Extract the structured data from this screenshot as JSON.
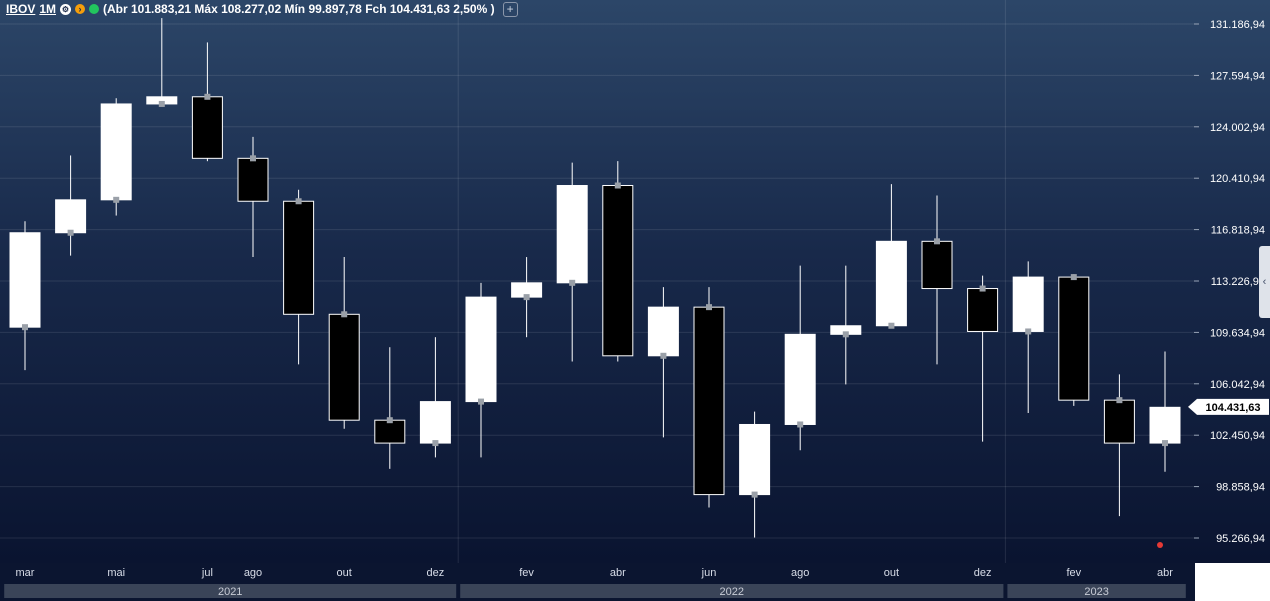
{
  "legend": {
    "symbol": "IBOV",
    "interval": "1M",
    "settings_glyph": "⚙",
    "arrow_glyph": "›",
    "ohlc_text": "(Abr 101.883,21 Máx 108.277,02 Mín 99.897,78 Fch 104.431,63 2,50% )",
    "add_glyph": "+"
  },
  "colors": {
    "background_top": "#2c4668",
    "background_bottom": "#0a1430",
    "up_candle": "#ffffff",
    "down_candle": "#000000",
    "wick": "#ffffff",
    "status_green": "#22c55e",
    "status_orange": "#f59e0b",
    "marker_red": "#e53935"
  },
  "icons": {
    "settings": "gear-icon",
    "nav": "chevron-right-icon",
    "status": "status-dot-icon",
    "add": "plus-icon",
    "side_handle": "chevron-left-icon"
  },
  "chart_data": {
    "type": "candlestick",
    "y_ticks": [
      "131.186,94",
      "127.594,94",
      "124.002,94",
      "120.410,94",
      "116.818,94",
      "113.226,94",
      "109.634,94",
      "106.042,94",
      "102.450,94",
      "98.858,94",
      "95.266,94"
    ],
    "x_month_labels": [
      {
        "label": "mar",
        "index": 0
      },
      {
        "label": "mai",
        "index": 2
      },
      {
        "label": "jul",
        "index": 4
      },
      {
        "label": "ago",
        "index": 5
      },
      {
        "label": "out",
        "index": 7
      },
      {
        "label": "dez",
        "index": 9
      },
      {
        "label": "fev",
        "index": 11
      },
      {
        "label": "abr",
        "index": 13
      },
      {
        "label": "jun",
        "index": 15
      },
      {
        "label": "ago",
        "index": 17
      },
      {
        "label": "out",
        "index": 19
      },
      {
        "label": "dez",
        "index": 21
      },
      {
        "label": "fev",
        "index": 23
      },
      {
        "label": "abr",
        "index": 25
      }
    ],
    "year_labels": [
      {
        "label": "2021",
        "from": 0,
        "to": 9
      },
      {
        "label": "2022",
        "from": 10,
        "to": 21
      },
      {
        "label": "2023",
        "from": 22,
        "to": 25
      }
    ],
    "candles": [
      {
        "open": 110.0,
        "high": 117.4,
        "low": 107.0,
        "close": 116.6
      },
      {
        "open": 116.6,
        "high": 122.0,
        "low": 115.0,
        "close": 118.9
      },
      {
        "open": 118.9,
        "high": 126.0,
        "low": 117.8,
        "close": 125.6
      },
      {
        "open": 125.6,
        "high": 131.6,
        "low": 125.6,
        "close": 126.1
      },
      {
        "open": 126.1,
        "high": 129.9,
        "low": 121.6,
        "close": 121.8
      },
      {
        "open": 121.8,
        "high": 123.3,
        "low": 114.9,
        "close": 118.8
      },
      {
        "open": 118.8,
        "high": 119.6,
        "low": 107.4,
        "close": 110.9
      },
      {
        "open": 110.9,
        "high": 114.9,
        "low": 102.9,
        "close": 103.5
      },
      {
        "open": 103.5,
        "high": 108.6,
        "low": 100.1,
        "close": 101.9
      },
      {
        "open": 101.9,
        "high": 109.3,
        "low": 100.9,
        "close": 104.8
      },
      {
        "open": 104.8,
        "high": 113.1,
        "low": 100.9,
        "close": 112.1
      },
      {
        "open": 112.1,
        "high": 114.9,
        "low": 109.3,
        "close": 113.1
      },
      {
        "open": 113.1,
        "high": 121.5,
        "low": 107.6,
        "close": 119.9
      },
      {
        "open": 119.9,
        "high": 121.6,
        "low": 107.6,
        "close": 108.0
      },
      {
        "open": 108.0,
        "high": 112.8,
        "low": 102.3,
        "close": 111.4
      },
      {
        "open": 111.4,
        "high": 112.8,
        "low": 97.4,
        "close": 98.3
      },
      {
        "open": 98.3,
        "high": 104.1,
        "low": 95.3,
        "close": 103.2
      },
      {
        "open": 103.2,
        "high": 114.3,
        "low": 101.4,
        "close": 109.5
      },
      {
        "open": 109.5,
        "high": 114.3,
        "low": 106.0,
        "close": 110.1
      },
      {
        "open": 110.1,
        "high": 120.0,
        "low": 110.1,
        "close": 116.0
      },
      {
        "open": 116.0,
        "high": 119.2,
        "low": 107.4,
        "close": 112.7
      },
      {
        "open": 112.7,
        "high": 113.6,
        "low": 102.0,
        "close": 109.7
      },
      {
        "open": 109.7,
        "high": 114.6,
        "low": 104.0,
        "close": 113.5
      },
      {
        "open": 113.5,
        "high": 113.7,
        "low": 104.5,
        "close": 104.9
      },
      {
        "open": 104.9,
        "high": 106.7,
        "low": 96.8,
        "close": 101.9
      },
      {
        "open": 101.9,
        "high": 108.3,
        "low": 99.9,
        "close": 104.4
      }
    ],
    "last_price_label": "104.431,63",
    "last_price_value": 104.43,
    "grid": true,
    "y_min": 94.0,
    "y_max": 132.0
  }
}
